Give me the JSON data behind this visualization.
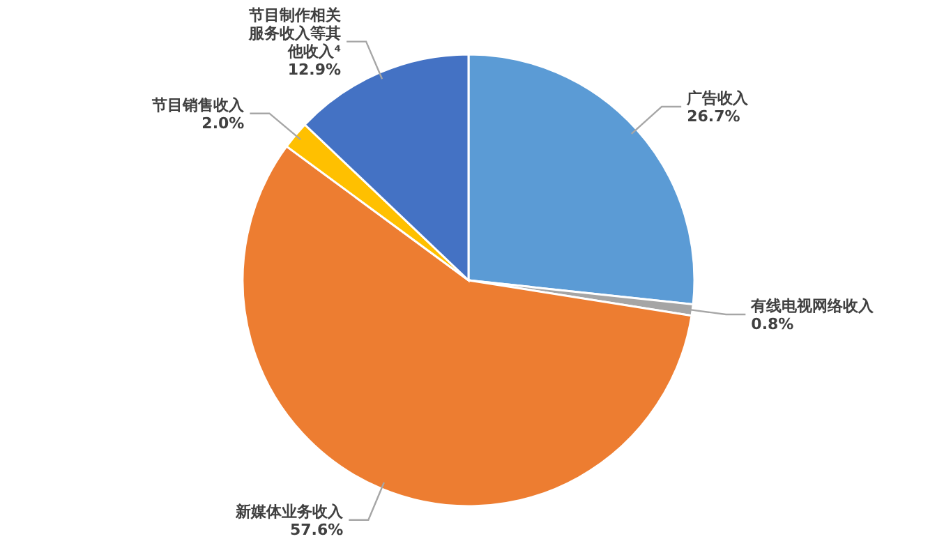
{
  "chart_data": {
    "type": "pie",
    "categories": [
      "广告收入",
      "有线电视网络收入",
      "新媒体业务收入",
      "节目销售收入",
      "节目制作相关服务收入等其他收入⁴"
    ],
    "values": [
      26.7,
      0.8,
      57.6,
      2.0,
      12.9
    ],
    "value_labels": [
      "26.7%",
      "0.8%",
      "57.6%",
      "2.0%",
      "12.9%"
    ],
    "colors": [
      "#5b9bd5",
      "#a5a5a5",
      "#ed7d31",
      "#ffc000",
      "#4472c4"
    ],
    "legend": false
  }
}
